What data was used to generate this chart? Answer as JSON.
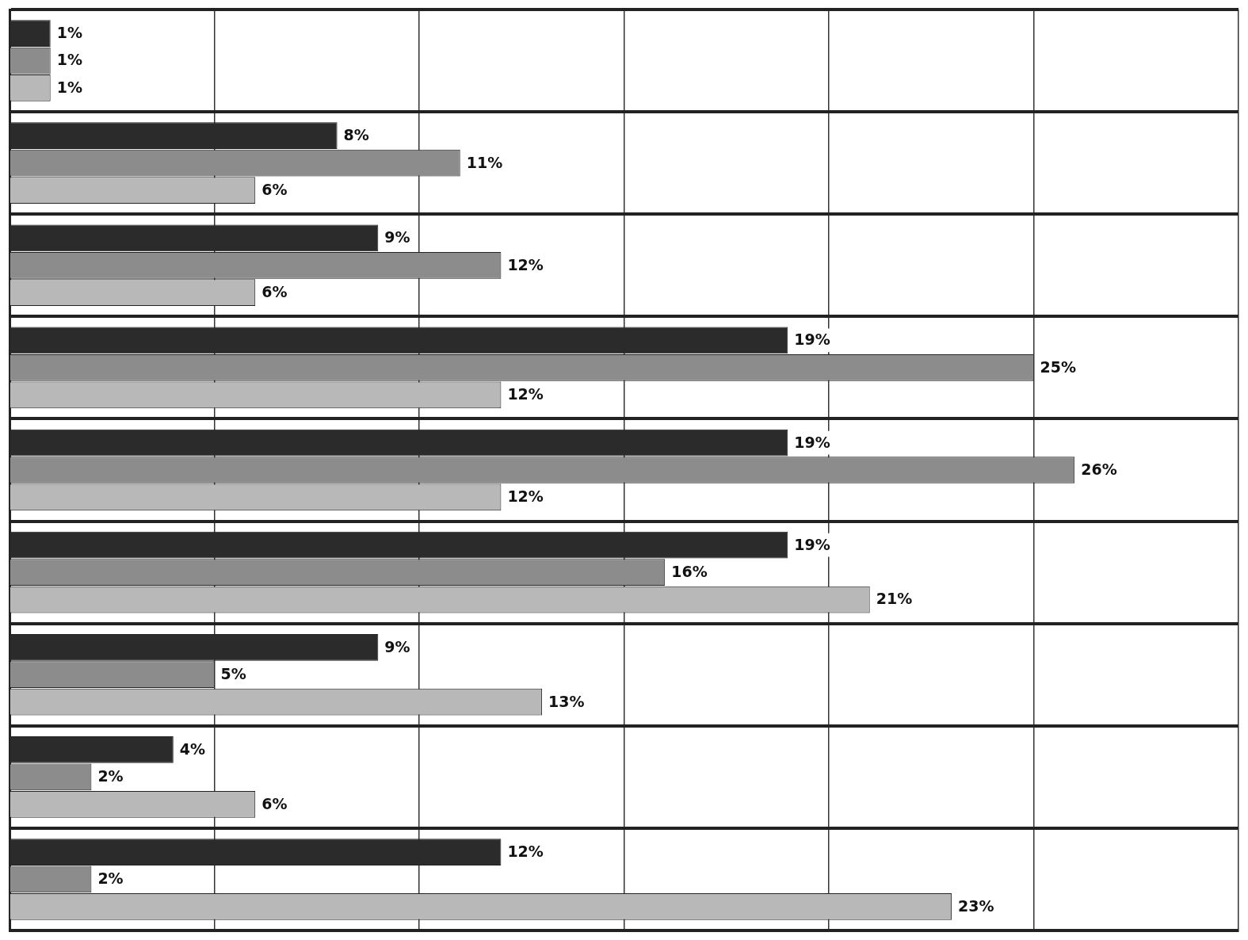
{
  "chart_data": {
    "type": "bar",
    "orientation": "horizontal",
    "categories": [
      null,
      null,
      null,
      null,
      null,
      null,
      null,
      null,
      null
    ],
    "series": [
      {
        "color": "#2b2b2b",
        "values": [
          1,
          8,
          9,
          19,
          19,
          19,
          9,
          4,
          12
        ],
        "value_labels": [
          "1%",
          "8%",
          "9%",
          "19%",
          "19%",
          "19%",
          "9%",
          "4%",
          "12%"
        ]
      },
      {
        "color": "#8c8c8c",
        "values": [
          1,
          11,
          12,
          25,
          26,
          16,
          5,
          2,
          2
        ],
        "value_labels": [
          "1%",
          "11%",
          "12%",
          "25%",
          "26%",
          "16%",
          "5%",
          "2%",
          "2%"
        ]
      },
      {
        "color": "#b8b8b8",
        "values": [
          1,
          6,
          6,
          12,
          12,
          21,
          13,
          6,
          23
        ],
        "value_labels": [
          "1%",
          "6%",
          "6%",
          "12%",
          "12%",
          "21%",
          "13%",
          "6%",
          "23%"
        ]
      }
    ],
    "tick_labels": false,
    "grid": true
  }
}
